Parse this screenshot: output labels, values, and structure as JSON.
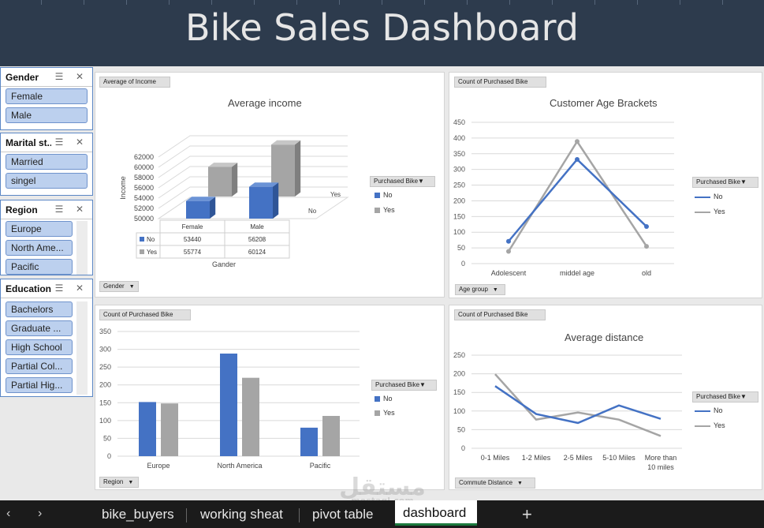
{
  "title": "Bike Sales Dashboard",
  "slicers": {
    "gender": {
      "label": "Gender",
      "items": [
        "Female",
        "Male"
      ]
    },
    "marital": {
      "label": "Marital st...",
      "items": [
        "Married",
        "singel"
      ]
    },
    "region": {
      "label": "Region",
      "items": [
        "Europe",
        "North Ame...",
        "Pacific"
      ]
    },
    "education": {
      "label": "Education",
      "items": [
        "Bachelors",
        "Graduate ...",
        "High School",
        "Partial Col...",
        "Partial Hig..."
      ]
    }
  },
  "charts": {
    "income": {
      "value_button": "Average of Income",
      "axis_button": "Gender",
      "legend_button": "Purchased Bike"
    },
    "age": {
      "value_button": "Count of Purchased Bike",
      "axis_button": "Age group",
      "legend_button": "Purchased Bike"
    },
    "region": {
      "value_button": "Count of Purchased Bike",
      "axis_button": "Region",
      "legend_button": "Purchased Bike"
    },
    "distance": {
      "value_button": "Count of Purchased Bike",
      "axis_button": "Commute Distance",
      "legend_button": "Purchased Bike"
    }
  },
  "chart_data": [
    {
      "type": "bar",
      "title": "Average income",
      "xlabel": "Gander",
      "ylabel": "Income",
      "categories": [
        "Female",
        "Male"
      ],
      "series": [
        {
          "name": "No",
          "values": [
            53440,
            56208
          ]
        },
        {
          "name": "Yes",
          "values": [
            55774,
            60124
          ]
        }
      ],
      "yticks": [
        "50000",
        "52000",
        "54000",
        "56000",
        "58000",
        "60000",
        "62000"
      ],
      "ylim": [
        50000,
        62000
      ],
      "depth_labels": [
        "Yes",
        "No"
      ],
      "legend_position": "right",
      "grid": true,
      "colors": {
        "No": "#4472c4",
        "Yes": "#a5a5a5"
      }
    },
    {
      "type": "line",
      "title": "Customer Age Brackets",
      "categories": [
        "Adolescent",
        "middel age",
        "old"
      ],
      "series": [
        {
          "name": "No",
          "values": [
            71,
            332,
            118
          ]
        },
        {
          "name": "Yes",
          "values": [
            39,
            389,
            55
          ]
        }
      ],
      "yticks": [
        "0",
        "50",
        "100",
        "150",
        "200",
        "250",
        "300",
        "350",
        "400",
        "450"
      ],
      "ylim": [
        0,
        450
      ],
      "legend_position": "right",
      "grid": true,
      "colors": {
        "No": "#4472c4",
        "Yes": "#a5a5a5"
      }
    },
    {
      "type": "bar",
      "title": "",
      "categories": [
        "Europe",
        "North America",
        "Pacific"
      ],
      "series": [
        {
          "name": "No",
          "values": [
            152,
            288,
            80
          ]
        },
        {
          "name": "Yes",
          "values": [
            148,
            220,
            113
          ]
        }
      ],
      "yticks": [
        "0",
        "50",
        "100",
        "150",
        "200",
        "250",
        "300",
        "350"
      ],
      "ylim": [
        0,
        350
      ],
      "legend_position": "right",
      "grid": true,
      "colors": {
        "No": "#4472c4",
        "Yes": "#a5a5a5"
      }
    },
    {
      "type": "line",
      "title": "Average distance",
      "categories": [
        "0-1 Miles",
        "1-2 Miles",
        "2-5 Miles",
        "5-10 Miles",
        "More than 10 miles"
      ],
      "series": [
        {
          "name": "No",
          "values": [
            167,
            92,
            68,
            115,
            79
          ]
        },
        {
          "name": "Yes",
          "values": [
            199,
            77,
            96,
            77,
            33
          ]
        }
      ],
      "yticks": [
        "0",
        "50",
        "100",
        "150",
        "200",
        "250"
      ],
      "ylim": [
        0,
        250
      ],
      "legend_position": "right",
      "grid": true,
      "colors": {
        "No": "#4472c4",
        "Yes": "#a5a5a5"
      }
    }
  ],
  "tabs": [
    "bike_buyers",
    "working sheat",
    "pivot table",
    "dashboard"
  ],
  "add_tab": "+",
  "nav": {
    "prev": "‹",
    "next": "›"
  },
  "watermark": {
    "main": "مستقل",
    "sub": "mostaql.com"
  }
}
